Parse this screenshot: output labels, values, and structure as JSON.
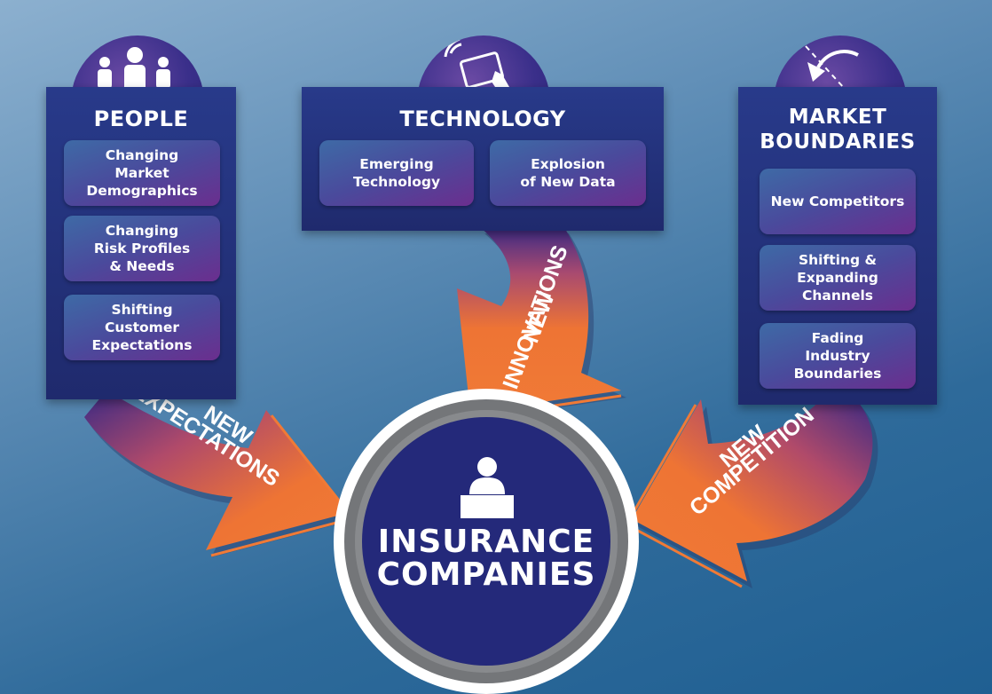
{
  "panels": {
    "people": {
      "title": "PEOPLE",
      "items": [
        "Changing\nMarket\nDemographics",
        "Changing\nRisk Profiles\n& Needs",
        "Shifting\nCustomer\nExpectations"
      ]
    },
    "technology": {
      "title": "TECHNOLOGY",
      "items": [
        "Emerging\nTechnology",
        "Explosion\nof New Data"
      ]
    },
    "market": {
      "title": "MARKET\nBOUNDARIES",
      "items": [
        "New Competitors",
        "Shifting &\nExpanding\nChannels",
        "Fading\nIndustry\nBoundaries"
      ]
    }
  },
  "arrows": {
    "left": {
      "line1": "NEW",
      "line2": "EXPECTATIONS"
    },
    "middle": {
      "line1": "NEW",
      "line2": "INNOVATIONS"
    },
    "right": {
      "line1": "NEW",
      "line2": "COMPETITION"
    }
  },
  "center": {
    "line1": "INSURANCE",
    "line2": "COMPANIES"
  },
  "icons": [
    "people-icon",
    "touchscreen-icon",
    "curved-arrow-icon",
    "desk-person-icon"
  ],
  "colors": {
    "arrow": "#ee7434",
    "panel": "#22307a",
    "circle_core": "#24297a",
    "circle_ring": "#747679"
  }
}
